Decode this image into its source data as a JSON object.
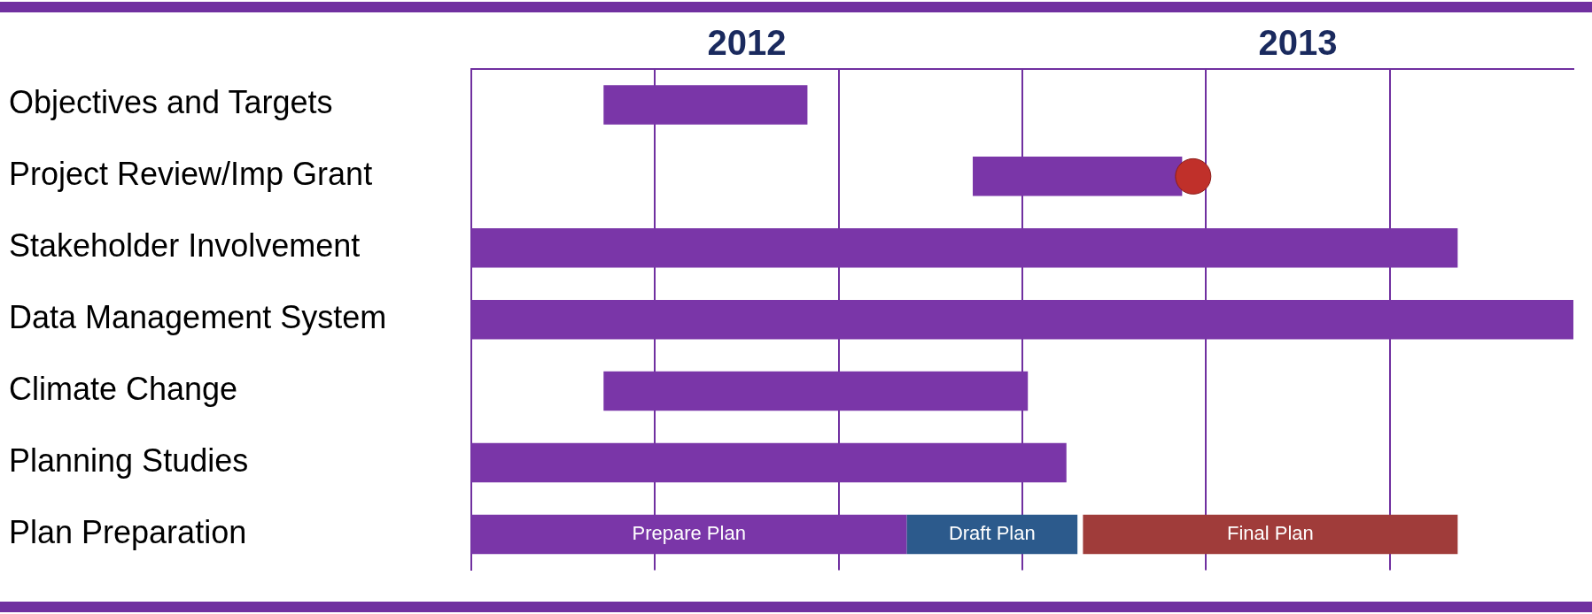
{
  "chart_data": {
    "type": "bar",
    "orientation": "horizontal",
    "categories": [
      "Objectives and Targets",
      "Project Review/Imp Grant",
      "Stakeholder Involvement",
      "Data Management System",
      "Climate Change",
      "Planning Studies",
      "Plan Preparation"
    ],
    "series": [
      {
        "color": "#7a36a8",
        "base": [
          2012.24,
          2012.91,
          2012.0,
          2012.0,
          2012.24,
          2012.0,
          null
        ],
        "values": [
          0.37,
          0.38,
          1.79,
          2.0,
          0.77,
          1.08,
          null
        ]
      },
      {
        "name": "Prepare Plan",
        "color": "#7a36a8",
        "base": [
          null,
          null,
          null,
          null,
          null,
          null,
          2012.0
        ],
        "values": [
          null,
          null,
          null,
          null,
          null,
          null,
          0.79
        ]
      },
      {
        "name": "Draft Plan",
        "color": "#2c5a8c",
        "base": [
          null,
          null,
          null,
          null,
          null,
          null,
          2012.79
        ],
        "values": [
          null,
          null,
          null,
          null,
          null,
          null,
          0.31
        ]
      },
      {
        "name": "Final Plan",
        "color": "#a03c3a",
        "base": [
          null,
          null,
          null,
          null,
          null,
          null,
          2013.11
        ],
        "values": [
          null,
          null,
          null,
          null,
          null,
          null,
          0.68
        ]
      },
      {
        "type": "scatter",
        "color": "#c0302a",
        "marker": "circle",
        "values": [
          null,
          2013.31,
          null,
          null,
          null,
          null,
          null
        ]
      }
    ],
    "xlim": [
      2012,
      2014
    ],
    "xticks": [
      {
        "value": 2012.333,
        "label": null
      },
      {
        "value": 2012.5,
        "label": "2012"
      },
      {
        "value": 2012.667,
        "label": null
      },
      {
        "value": 2013,
        "label": null
      },
      {
        "value": 2013.333,
        "label": null
      },
      {
        "value": 2013.5,
        "label": "2013"
      },
      {
        "value": 2013.667,
        "label": null
      }
    ],
    "grid": "x",
    "legend": false
  }
}
